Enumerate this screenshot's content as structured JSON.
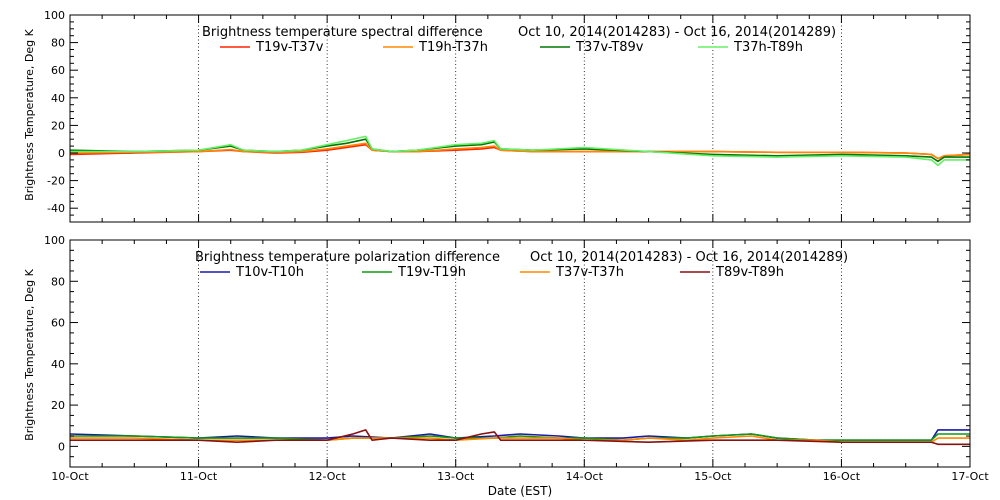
{
  "chart_data": [
    {
      "type": "line",
      "title": "Brightness temperature spectral difference",
      "subtitle": "Oct 10, 2014(2014283) - Oct 16, 2014(2014289)",
      "xlabel": "",
      "ylabel": "Brightness Temperature, Deg K",
      "ylim": [
        -50,
        100
      ],
      "yticks": [
        -40,
        -20,
        0,
        20,
        40,
        60,
        80,
        100
      ],
      "xlim": [
        0,
        7
      ],
      "xticks": [
        0,
        1,
        2,
        3,
        4,
        5,
        6,
        7
      ],
      "grid": true,
      "legend": "top",
      "series": [
        {
          "name": "T19v-T37v",
          "color": "#ff2200",
          "x": [
            0,
            0.5,
            1,
            1.25,
            1.35,
            1.6,
            1.8,
            2,
            2.15,
            2.3,
            2.35,
            2.5,
            2.7,
            3,
            3.2,
            3.3,
            3.35,
            3.6,
            4,
            4.5,
            5,
            5.5,
            6,
            6.5,
            6.7,
            6.75,
            6.8,
            7
          ],
          "y": [
            -1,
            0,
            1,
            2,
            1,
            0,
            0.5,
            2,
            4,
            6,
            2,
            1,
            1,
            2,
            3,
            4,
            2,
            1,
            1,
            1,
            1,
            0.5,
            0.5,
            0,
            -1,
            -4,
            -2,
            -1
          ]
        },
        {
          "name": "T19h-T37h",
          "color": "#ff8800",
          "x": [
            0,
            0.5,
            1,
            1.25,
            1.35,
            1.6,
            1.8,
            2,
            2.15,
            2.3,
            2.35,
            2.5,
            2.7,
            3,
            3.2,
            3.3,
            3.35,
            3.6,
            4,
            4.5,
            5,
            5.5,
            6,
            6.5,
            6.7,
            6.75,
            6.8,
            7
          ],
          "y": [
            0,
            0.5,
            1,
            2.5,
            1,
            0.5,
            1,
            3,
            5,
            7,
            2,
            1,
            1,
            3,
            4,
            5,
            2,
            1,
            1,
            1,
            1,
            0.5,
            0.5,
            0,
            -1,
            -4,
            -2,
            -1
          ]
        },
        {
          "name": "T37v-T89v",
          "color": "#007700",
          "x": [
            0,
            0.5,
            1,
            1.25,
            1.35,
            1.6,
            1.8,
            2,
            2.15,
            2.3,
            2.35,
            2.5,
            2.7,
            3,
            3.2,
            3.3,
            3.35,
            3.6,
            4,
            4.5,
            5,
            5.5,
            6,
            6.5,
            6.7,
            6.75,
            6.8,
            7
          ],
          "y": [
            2,
            1,
            2,
            5,
            2,
            1,
            2,
            5,
            7,
            10,
            3,
            1,
            2,
            5,
            6,
            8,
            3,
            2,
            3,
            1,
            -1,
            -2,
            -1,
            -2,
            -3,
            -6,
            -3,
            -3
          ]
        },
        {
          "name": "T37h-T89h",
          "color": "#66ee66",
          "x": [
            0,
            0.5,
            1,
            1.25,
            1.35,
            1.6,
            1.8,
            2,
            2.15,
            2.3,
            2.35,
            2.5,
            2.7,
            3,
            3.2,
            3.3,
            3.35,
            3.6,
            4,
            4.5,
            5,
            5.5,
            6,
            6.5,
            6.7,
            6.75,
            6.8,
            7
          ],
          "y": [
            1,
            1,
            2,
            6,
            2,
            1,
            2,
            6,
            9,
            12,
            3,
            1,
            2,
            6,
            7,
            9,
            3,
            2,
            4,
            1,
            -2,
            -3,
            -2,
            -3,
            -5,
            -9,
            -5,
            -5
          ]
        }
      ]
    },
    {
      "type": "line",
      "title": "Brightness temperature polarization difference",
      "subtitle": "Oct 10, 2014(2014283) - Oct 16, 2014(2014289)",
      "xlabel": "Date (EST)",
      "ylabel": "Brightness Temperature, Deg K",
      "ylim": [
        -10,
        100
      ],
      "yticks": [
        0,
        20,
        40,
        60,
        80,
        100
      ],
      "xlim": [
        0,
        7
      ],
      "xticks": [
        0,
        1,
        2,
        3,
        4,
        5,
        6,
        7
      ],
      "grid": true,
      "legend": "top",
      "series": [
        {
          "name": "T10v-T10h",
          "color": "#1a1aa6",
          "x": [
            0,
            0.5,
            1,
            1.3,
            1.6,
            2,
            2.2,
            2.5,
            2.8,
            3,
            3.3,
            3.5,
            3.8,
            4,
            4.3,
            4.5,
            4.8,
            5,
            5.3,
            5.5,
            5.8,
            6,
            6.5,
            6.7,
            6.75,
            7
          ],
          "y": [
            6,
            5,
            4,
            5,
            4,
            4,
            5,
            4,
            6,
            4,
            5,
            6,
            5,
            4,
            4,
            5,
            4,
            5,
            6,
            4,
            3,
            3,
            3,
            3,
            8,
            8
          ]
        },
        {
          "name": "T19v-T19h",
          "color": "#119911",
          "x": [
            0,
            0.5,
            1,
            1.3,
            1.6,
            2,
            2.2,
            2.5,
            2.8,
            3,
            3.3,
            3.5,
            3.8,
            4,
            4.3,
            4.5,
            4.8,
            5,
            5.3,
            5.5,
            5.8,
            6,
            6.5,
            6.7,
            6.75,
            7
          ],
          "y": [
            5,
            5,
            4,
            4,
            4,
            3,
            4,
            4,
            5,
            4,
            4,
            5,
            4,
            4,
            3,
            4,
            4,
            5,
            6,
            4,
            3,
            3,
            3,
            3,
            6,
            6
          ]
        },
        {
          "name": "T37v-T37h",
          "color": "#ff8800",
          "x": [
            0,
            0.5,
            1,
            1.3,
            1.6,
            2,
            2.2,
            2.5,
            2.8,
            3,
            3.3,
            3.5,
            3.8,
            4,
            4.3,
            4.5,
            4.8,
            5,
            5.3,
            5.5,
            5.8,
            6,
            6.5,
            6.7,
            6.75,
            7
          ],
          "y": [
            4,
            4,
            3,
            3,
            3,
            3,
            4,
            4,
            4,
            3,
            4,
            4,
            4,
            3,
            3,
            4,
            3,
            4,
            5,
            3,
            3,
            2,
            2,
            2,
            4,
            4
          ]
        },
        {
          "name": "T89v-T89h",
          "color": "#881111",
          "x": [
            0,
            0.5,
            1,
            1.3,
            1.6,
            2,
            2.2,
            2.3,
            2.35,
            2.5,
            2.8,
            3,
            3.2,
            3.3,
            3.35,
            3.5,
            3.8,
            4,
            4.5,
            5,
            5.5,
            6,
            6.5,
            6.7,
            6.75,
            7
          ],
          "y": [
            3,
            3,
            3,
            2,
            3,
            3,
            6,
            8,
            3,
            4,
            3,
            3,
            6,
            7,
            3,
            3,
            3,
            3,
            2,
            3,
            3,
            2,
            2,
            2,
            1,
            1
          ]
        }
      ]
    }
  ],
  "x_tick_labels": [
    "10-Oct",
    "11-Oct",
    "12-Oct",
    "13-Oct",
    "14-Oct",
    "15-Oct",
    "16-Oct",
    "17-Oct"
  ]
}
